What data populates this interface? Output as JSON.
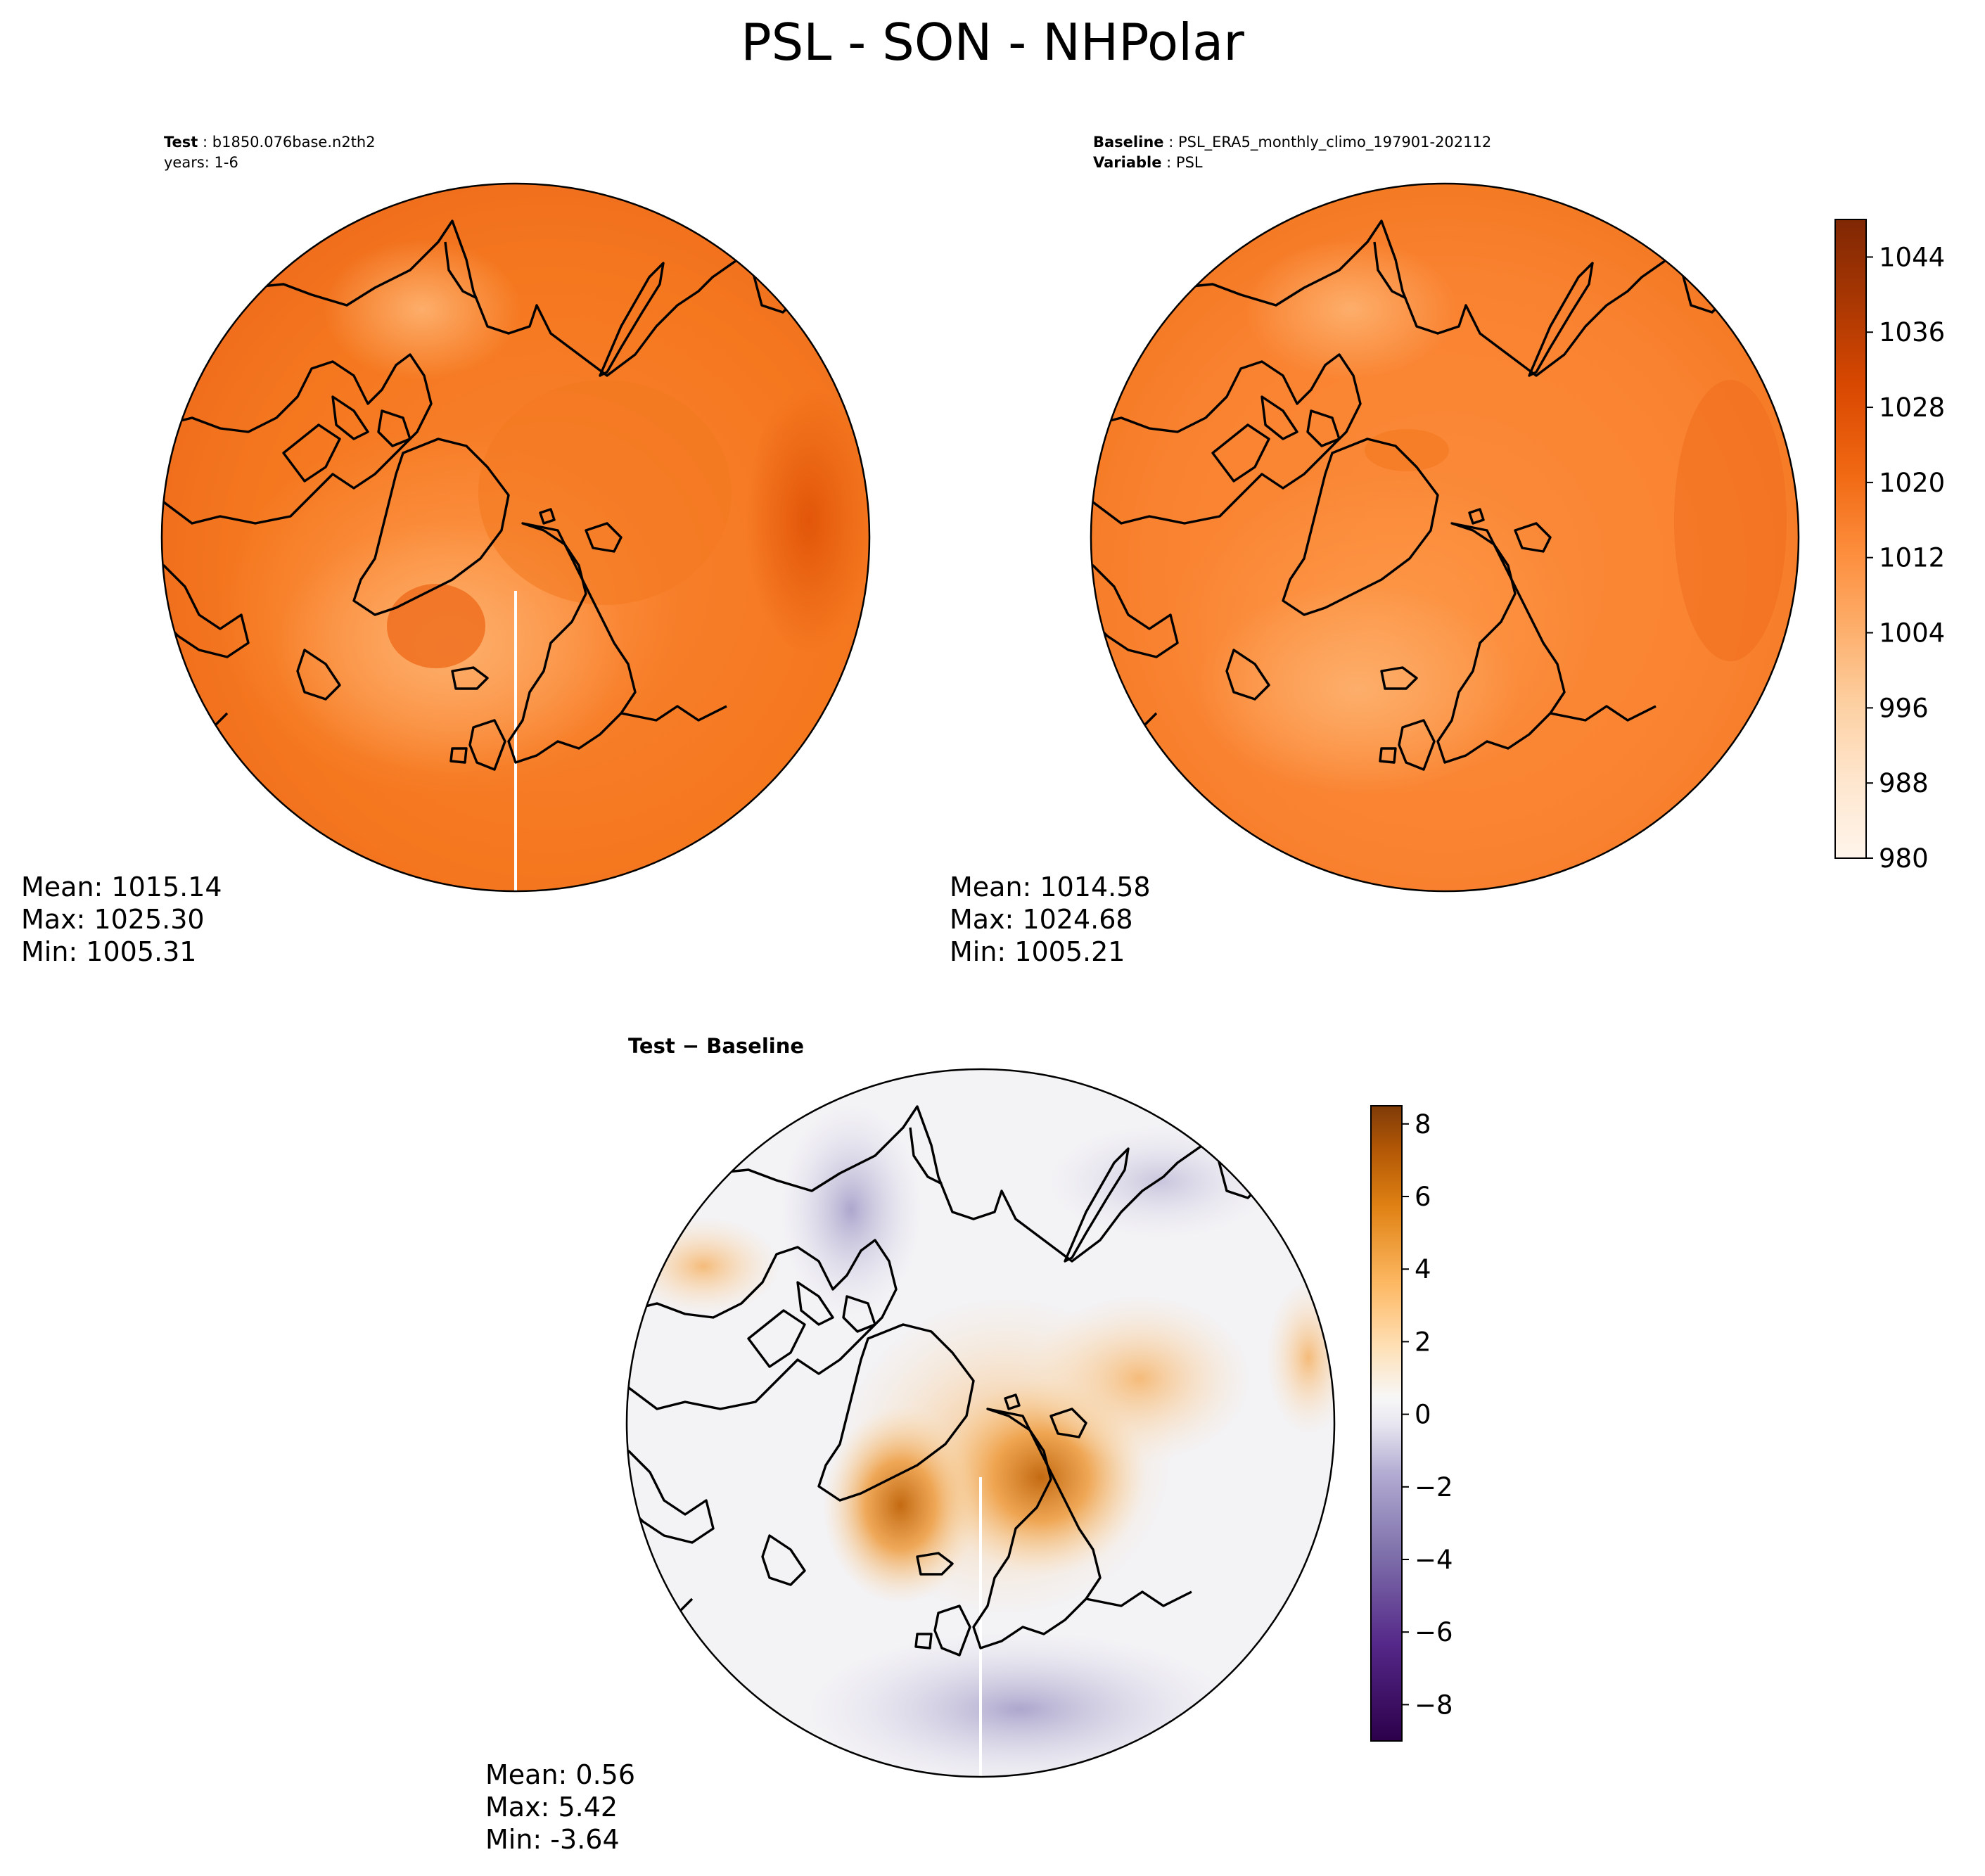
{
  "title": "PSL - SON - NHPolar",
  "test_panel": {
    "header_label": "Test",
    "header_value": "b1850.076base.n2th2",
    "years": "years: 1-6",
    "stats": {
      "mean": "Mean: 1015.14",
      "max": "Max: 1025.30",
      "min": "Min: 1005.31"
    }
  },
  "baseline_panel": {
    "baseline_label": "Baseline",
    "baseline_value": "PSL_ERA5_monthly_climo_197901-202112",
    "variable_label": "Variable",
    "variable_value": "PSL",
    "stats": {
      "mean": "Mean: 1014.58",
      "max": "Max: 1024.68",
      "min": "Min: 1005.21"
    }
  },
  "diff_panel": {
    "title": "Test − Baseline",
    "stats": {
      "mean": "Mean:  0.56",
      "max": "Max:  5.42",
      "min": "Min: -3.64"
    }
  },
  "colors": {
    "orange_scale": [
      "#fff5eb",
      "#fee9d3",
      "#fddbb7",
      "#fdc895",
      "#fdae6b",
      "#fd9849",
      "#f98230",
      "#ef6c1c",
      "#e25609",
      "#c94103",
      "#a83503",
      "#7f2704"
    ],
    "purple_orange_low": "#2d004b",
    "purple_orange_mid": "#f7f7f7",
    "purple_orange_high": "#7f3b08"
  },
  "chart_data": [
    {
      "type": "heatmap",
      "title": "Test",
      "projection": "north-polar-stereographic",
      "variable": "PSL",
      "colormap": "Oranges",
      "stats": {
        "mean": 1015.14,
        "max": 1025.3,
        "min": 1005.31
      },
      "colorbar": {
        "range": [
          980,
          1048
        ],
        "ticks": [
          980,
          988,
          996,
          1004,
          1012,
          1020,
          1028,
          1036,
          1044
        ],
        "tick_labels": [
          "980",
          "988",
          "996",
          "1004",
          "1012",
          "1020",
          "1028",
          "1036",
          "1044"
        ]
      }
    },
    {
      "type": "heatmap",
      "title": "Baseline",
      "projection": "north-polar-stereographic",
      "variable": "PSL",
      "colormap": "Oranges",
      "stats": {
        "mean": 1014.58,
        "max": 1024.68,
        "min": 1005.21
      },
      "colorbar": {
        "range": [
          980,
          1048
        ],
        "ticks": [
          980,
          988,
          996,
          1004,
          1012,
          1020,
          1028,
          1036,
          1044
        ],
        "tick_labels": [
          "980",
          "988",
          "996",
          "1004",
          "1012",
          "1020",
          "1028",
          "1036",
          "1044"
        ]
      }
    },
    {
      "type": "heatmap",
      "title": "Test − Baseline",
      "projection": "north-polar-stereographic",
      "colormap": "PuOr_r",
      "stats": {
        "mean": 0.56,
        "max": 5.42,
        "min": -3.64
      },
      "colorbar": {
        "range": [
          -9,
          8.5
        ],
        "ticks": [
          -8,
          -6,
          -4,
          -2,
          0,
          2,
          4,
          6,
          8
        ],
        "tick_labels": [
          "−8",
          "−6",
          "−4",
          "−2",
          "0",
          "2",
          "4",
          "6",
          "8"
        ]
      }
    }
  ]
}
